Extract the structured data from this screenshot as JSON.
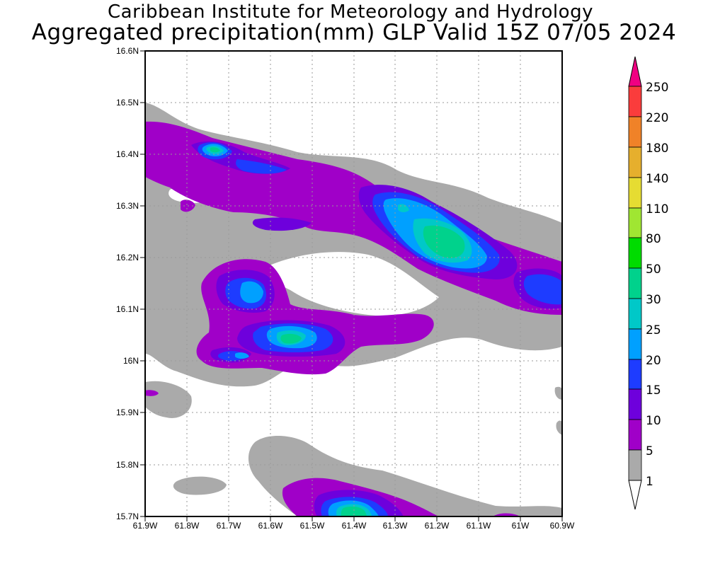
{
  "header": {
    "institute": "Caribbean Institute for Meteorology and Hydrology",
    "product": "Aggregated precipitation(mm) GLP Valid 15Z 07/05 2024"
  },
  "map": {
    "lat_labels": [
      "16.6N",
      "16.5N",
      "16.4N",
      "16.3N",
      "16.2N",
      "16.1N",
      "16N",
      "15.9N",
      "15.8N",
      "15.7N"
    ],
    "lon_labels": [
      "61.9W",
      "61.8W",
      "61.7W",
      "61.6W",
      "61.5W",
      "61.4W",
      "61.3W",
      "61.2W",
      "61.1W",
      "61W",
      "60.9W"
    ],
    "lat_range": [
      15.7,
      16.6
    ],
    "lon_range": [
      -61.9,
      -60.9
    ],
    "grid": "dotted"
  },
  "colorbar": {
    "levels": [
      "1",
      "5",
      "10",
      "15",
      "20",
      "25",
      "30",
      "50",
      "80",
      "110",
      "140",
      "180",
      "220",
      "250"
    ],
    "colors": [
      "#aaaaaa",
      "#a000c8",
      "#6e00dc",
      "#1e3cff",
      "#00a0ff",
      "#00c8c8",
      "#00d28c",
      "#00dc00",
      "#a0e632",
      "#e6dc32",
      "#e6af2d",
      "#f08228",
      "#fa3c3c",
      "#f00082"
    ],
    "below_color": "#ffffff"
  },
  "legend_colors": {
    "grey": "#aaaaaa",
    "purple": "#a000c8",
    "violet": "#6e00dc",
    "blue": "#1e3cff",
    "lightblue": "#00a0ff",
    "cyan": "#00c8c8",
    "teal": "#00d28c"
  }
}
